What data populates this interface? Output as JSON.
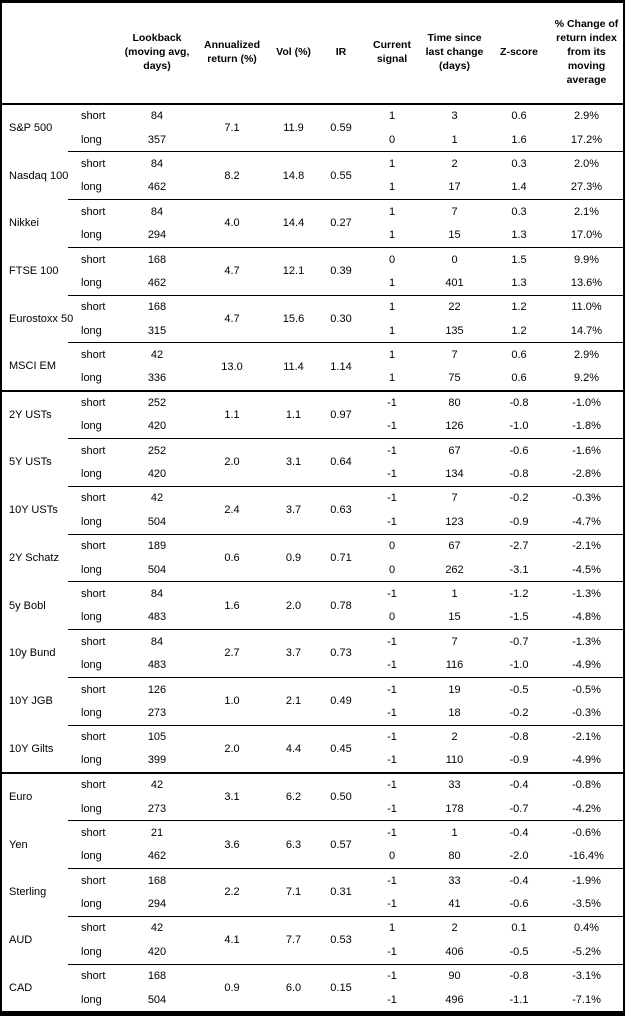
{
  "colors": {
    "background": "#ffffff",
    "text": "#000000",
    "border": "#000000"
  },
  "table": {
    "headers": [
      "",
      "",
      "Lookback (moving avg, days)",
      "Annualized return (%)",
      "Vol (%)",
      "IR",
      "Current signal",
      "Time since last change (days)",
      "Z-score",
      "% Change of return index from its moving average"
    ],
    "sections": [
      {
        "groups": [
          {
            "asset": "S&P 500",
            "annualized_return": "7.1",
            "vol": "11.9",
            "ir": "0.59",
            "rows": [
              {
                "horizon": "short",
                "lookback": "84",
                "signal": "1",
                "time_since_change": "3",
                "z_score": "0.6",
                "pct_change": "2.9%"
              },
              {
                "horizon": "long",
                "lookback": "357",
                "signal": "0",
                "time_since_change": "1",
                "z_score": "1.6",
                "pct_change": "17.2%"
              }
            ]
          },
          {
            "asset": "Nasdaq 100",
            "annualized_return": "8.2",
            "vol": "14.8",
            "ir": "0.55",
            "rows": [
              {
                "horizon": "short",
                "lookback": "84",
                "signal": "1",
                "time_since_change": "2",
                "z_score": "0.3",
                "pct_change": "2.0%"
              },
              {
                "horizon": "long",
                "lookback": "462",
                "signal": "1",
                "time_since_change": "17",
                "z_score": "1.4",
                "pct_change": "27.3%"
              }
            ]
          },
          {
            "asset": "Nikkei",
            "annualized_return": "4.0",
            "vol": "14.4",
            "ir": "0.27",
            "rows": [
              {
                "horizon": "short",
                "lookback": "84",
                "signal": "1",
                "time_since_change": "7",
                "z_score": "0.3",
                "pct_change": "2.1%"
              },
              {
                "horizon": "long",
                "lookback": "294",
                "signal": "1",
                "time_since_change": "15",
                "z_score": "1.3",
                "pct_change": "17.0%"
              }
            ]
          },
          {
            "asset": "FTSE 100",
            "annualized_return": "4.7",
            "vol": "12.1",
            "ir": "0.39",
            "rows": [
              {
                "horizon": "short",
                "lookback": "168",
                "signal": "0",
                "time_since_change": "0",
                "z_score": "1.5",
                "pct_change": "9.9%"
              },
              {
                "horizon": "long",
                "lookback": "462",
                "signal": "1",
                "time_since_change": "401",
                "z_score": "1.3",
                "pct_change": "13.6%"
              }
            ]
          },
          {
            "asset": "Eurostoxx 50",
            "annualized_return": "4.7",
            "vol": "15.6",
            "ir": "0.30",
            "rows": [
              {
                "horizon": "short",
                "lookback": "168",
                "signal": "1",
                "time_since_change": "22",
                "z_score": "1.2",
                "pct_change": "11.0%"
              },
              {
                "horizon": "long",
                "lookback": "315",
                "signal": "1",
                "time_since_change": "135",
                "z_score": "1.2",
                "pct_change": "14.7%"
              }
            ]
          },
          {
            "asset": "MSCI EM",
            "annualized_return": "13.0",
            "vol": "11.4",
            "ir": "1.14",
            "rows": [
              {
                "horizon": "short",
                "lookback": "42",
                "signal": "1",
                "time_since_change": "7",
                "z_score": "0.6",
                "pct_change": "2.9%"
              },
              {
                "horizon": "long",
                "lookback": "336",
                "signal": "1",
                "time_since_change": "75",
                "z_score": "0.6",
                "pct_change": "9.2%"
              }
            ]
          }
        ]
      },
      {
        "groups": [
          {
            "asset": "2Y USTs",
            "annualized_return": "1.1",
            "vol": "1.1",
            "ir": "0.97",
            "rows": [
              {
                "horizon": "short",
                "lookback": "252",
                "signal": "-1",
                "time_since_change": "80",
                "z_score": "-0.8",
                "pct_change": "-1.0%"
              },
              {
                "horizon": "long",
                "lookback": "420",
                "signal": "-1",
                "time_since_change": "126",
                "z_score": "-1.0",
                "pct_change": "-1.8%"
              }
            ]
          },
          {
            "asset": "5Y USTs",
            "annualized_return": "2.0",
            "vol": "3.1",
            "ir": "0.64",
            "rows": [
              {
                "horizon": "short",
                "lookback": "252",
                "signal": "-1",
                "time_since_change": "67",
                "z_score": "-0.6",
                "pct_change": "-1.6%"
              },
              {
                "horizon": "long",
                "lookback": "420",
                "signal": "-1",
                "time_since_change": "134",
                "z_score": "-0.8",
                "pct_change": "-2.8%"
              }
            ]
          },
          {
            "asset": "10Y USTs",
            "annualized_return": "2.4",
            "vol": "3.7",
            "ir": "0.63",
            "rows": [
              {
                "horizon": "short",
                "lookback": "42",
                "signal": "-1",
                "time_since_change": "7",
                "z_score": "-0.2",
                "pct_change": "-0.3%"
              },
              {
                "horizon": "long",
                "lookback": "504",
                "signal": "-1",
                "time_since_change": "123",
                "z_score": "-0.9",
                "pct_change": "-4.7%"
              }
            ]
          },
          {
            "asset": "2Y Schatz",
            "annualized_return": "0.6",
            "vol": "0.9",
            "ir": "0.71",
            "rows": [
              {
                "horizon": "short",
                "lookback": "189",
                "signal": "0",
                "time_since_change": "67",
                "z_score": "-2.7",
                "pct_change": "-2.1%"
              },
              {
                "horizon": "long",
                "lookback": "504",
                "signal": "0",
                "time_since_change": "262",
                "z_score": "-3.1",
                "pct_change": "-4.5%"
              }
            ]
          },
          {
            "asset": "5y Bobl",
            "annualized_return": "1.6",
            "vol": "2.0",
            "ir": "0.78",
            "rows": [
              {
                "horizon": "short",
                "lookback": "84",
                "signal": "-1",
                "time_since_change": "1",
                "z_score": "-1.2",
                "pct_change": "-1.3%"
              },
              {
                "horizon": "long",
                "lookback": "483",
                "signal": "0",
                "time_since_change": "15",
                "z_score": "-1.5",
                "pct_change": "-4.8%"
              }
            ]
          },
          {
            "asset": "10y Bund",
            "annualized_return": "2.7",
            "vol": "3.7",
            "ir": "0.73",
            "rows": [
              {
                "horizon": "short",
                "lookback": "84",
                "signal": "-1",
                "time_since_change": "7",
                "z_score": "-0.7",
                "pct_change": "-1.3%"
              },
              {
                "horizon": "long",
                "lookback": "483",
                "signal": "-1",
                "time_since_change": "116",
                "z_score": "-1.0",
                "pct_change": "-4.9%"
              }
            ]
          },
          {
            "asset": "10Y JGB",
            "annualized_return": "1.0",
            "vol": "2.1",
            "ir": "0.49",
            "rows": [
              {
                "horizon": "short",
                "lookback": "126",
                "signal": "-1",
                "time_since_change": "19",
                "z_score": "-0.5",
                "pct_change": "-0.5%"
              },
              {
                "horizon": "long",
                "lookback": "273",
                "signal": "-1",
                "time_since_change": "18",
                "z_score": "-0.2",
                "pct_change": "-0.3%"
              }
            ]
          },
          {
            "asset": "10Y Gilts",
            "annualized_return": "2.0",
            "vol": "4.4",
            "ir": "0.45",
            "rows": [
              {
                "horizon": "short",
                "lookback": "105",
                "signal": "-1",
                "time_since_change": "2",
                "z_score": "-0.8",
                "pct_change": "-2.1%"
              },
              {
                "horizon": "long",
                "lookback": "399",
                "signal": "-1",
                "time_since_change": "110",
                "z_score": "-0.9",
                "pct_change": "-4.9%"
              }
            ]
          }
        ]
      },
      {
        "groups": [
          {
            "asset": "Euro",
            "annualized_return": "3.1",
            "vol": "6.2",
            "ir": "0.50",
            "rows": [
              {
                "horizon": "short",
                "lookback": "42",
                "signal": "-1",
                "time_since_change": "33",
                "z_score": "-0.4",
                "pct_change": "-0.8%"
              },
              {
                "horizon": "long",
                "lookback": "273",
                "signal": "-1",
                "time_since_change": "178",
                "z_score": "-0.7",
                "pct_change": "-4.2%"
              }
            ]
          },
          {
            "asset": "Yen",
            "annualized_return": "3.6",
            "vol": "6.3",
            "ir": "0.57",
            "rows": [
              {
                "horizon": "short",
                "lookback": "21",
                "signal": "-1",
                "time_since_change": "1",
                "z_score": "-0.4",
                "pct_change": "-0.6%"
              },
              {
                "horizon": "long",
                "lookback": "462",
                "signal": "0",
                "time_since_change": "80",
                "z_score": "-2.0",
                "pct_change": "-16.4%"
              }
            ]
          },
          {
            "asset": "Sterling",
            "annualized_return": "2.2",
            "vol": "7.1",
            "ir": "0.31",
            "rows": [
              {
                "horizon": "short",
                "lookback": "168",
                "signal": "-1",
                "time_since_change": "33",
                "z_score": "-0.4",
                "pct_change": "-1.9%"
              },
              {
                "horizon": "long",
                "lookback": "294",
                "signal": "-1",
                "time_since_change": "41",
                "z_score": "-0.6",
                "pct_change": "-3.5%"
              }
            ]
          },
          {
            "asset": "AUD",
            "annualized_return": "4.1",
            "vol": "7.7",
            "ir": "0.53",
            "rows": [
              {
                "horizon": "short",
                "lookback": "42",
                "signal": "1",
                "time_since_change": "2",
                "z_score": "0.1",
                "pct_change": "0.4%"
              },
              {
                "horizon": "long",
                "lookback": "420",
                "signal": "-1",
                "time_since_change": "406",
                "z_score": "-0.5",
                "pct_change": "-5.2%"
              }
            ]
          },
          {
            "asset": "CAD",
            "annualized_return": "0.9",
            "vol": "6.0",
            "ir": "0.15",
            "rows": [
              {
                "horizon": "short",
                "lookback": "168",
                "signal": "-1",
                "time_since_change": "90",
                "z_score": "-0.8",
                "pct_change": "-3.1%"
              },
              {
                "horizon": "long",
                "lookback": "504",
                "signal": "-1",
                "time_since_change": "496",
                "z_score": "-1.1",
                "pct_change": "-7.1%"
              }
            ]
          }
        ]
      }
    ]
  }
}
